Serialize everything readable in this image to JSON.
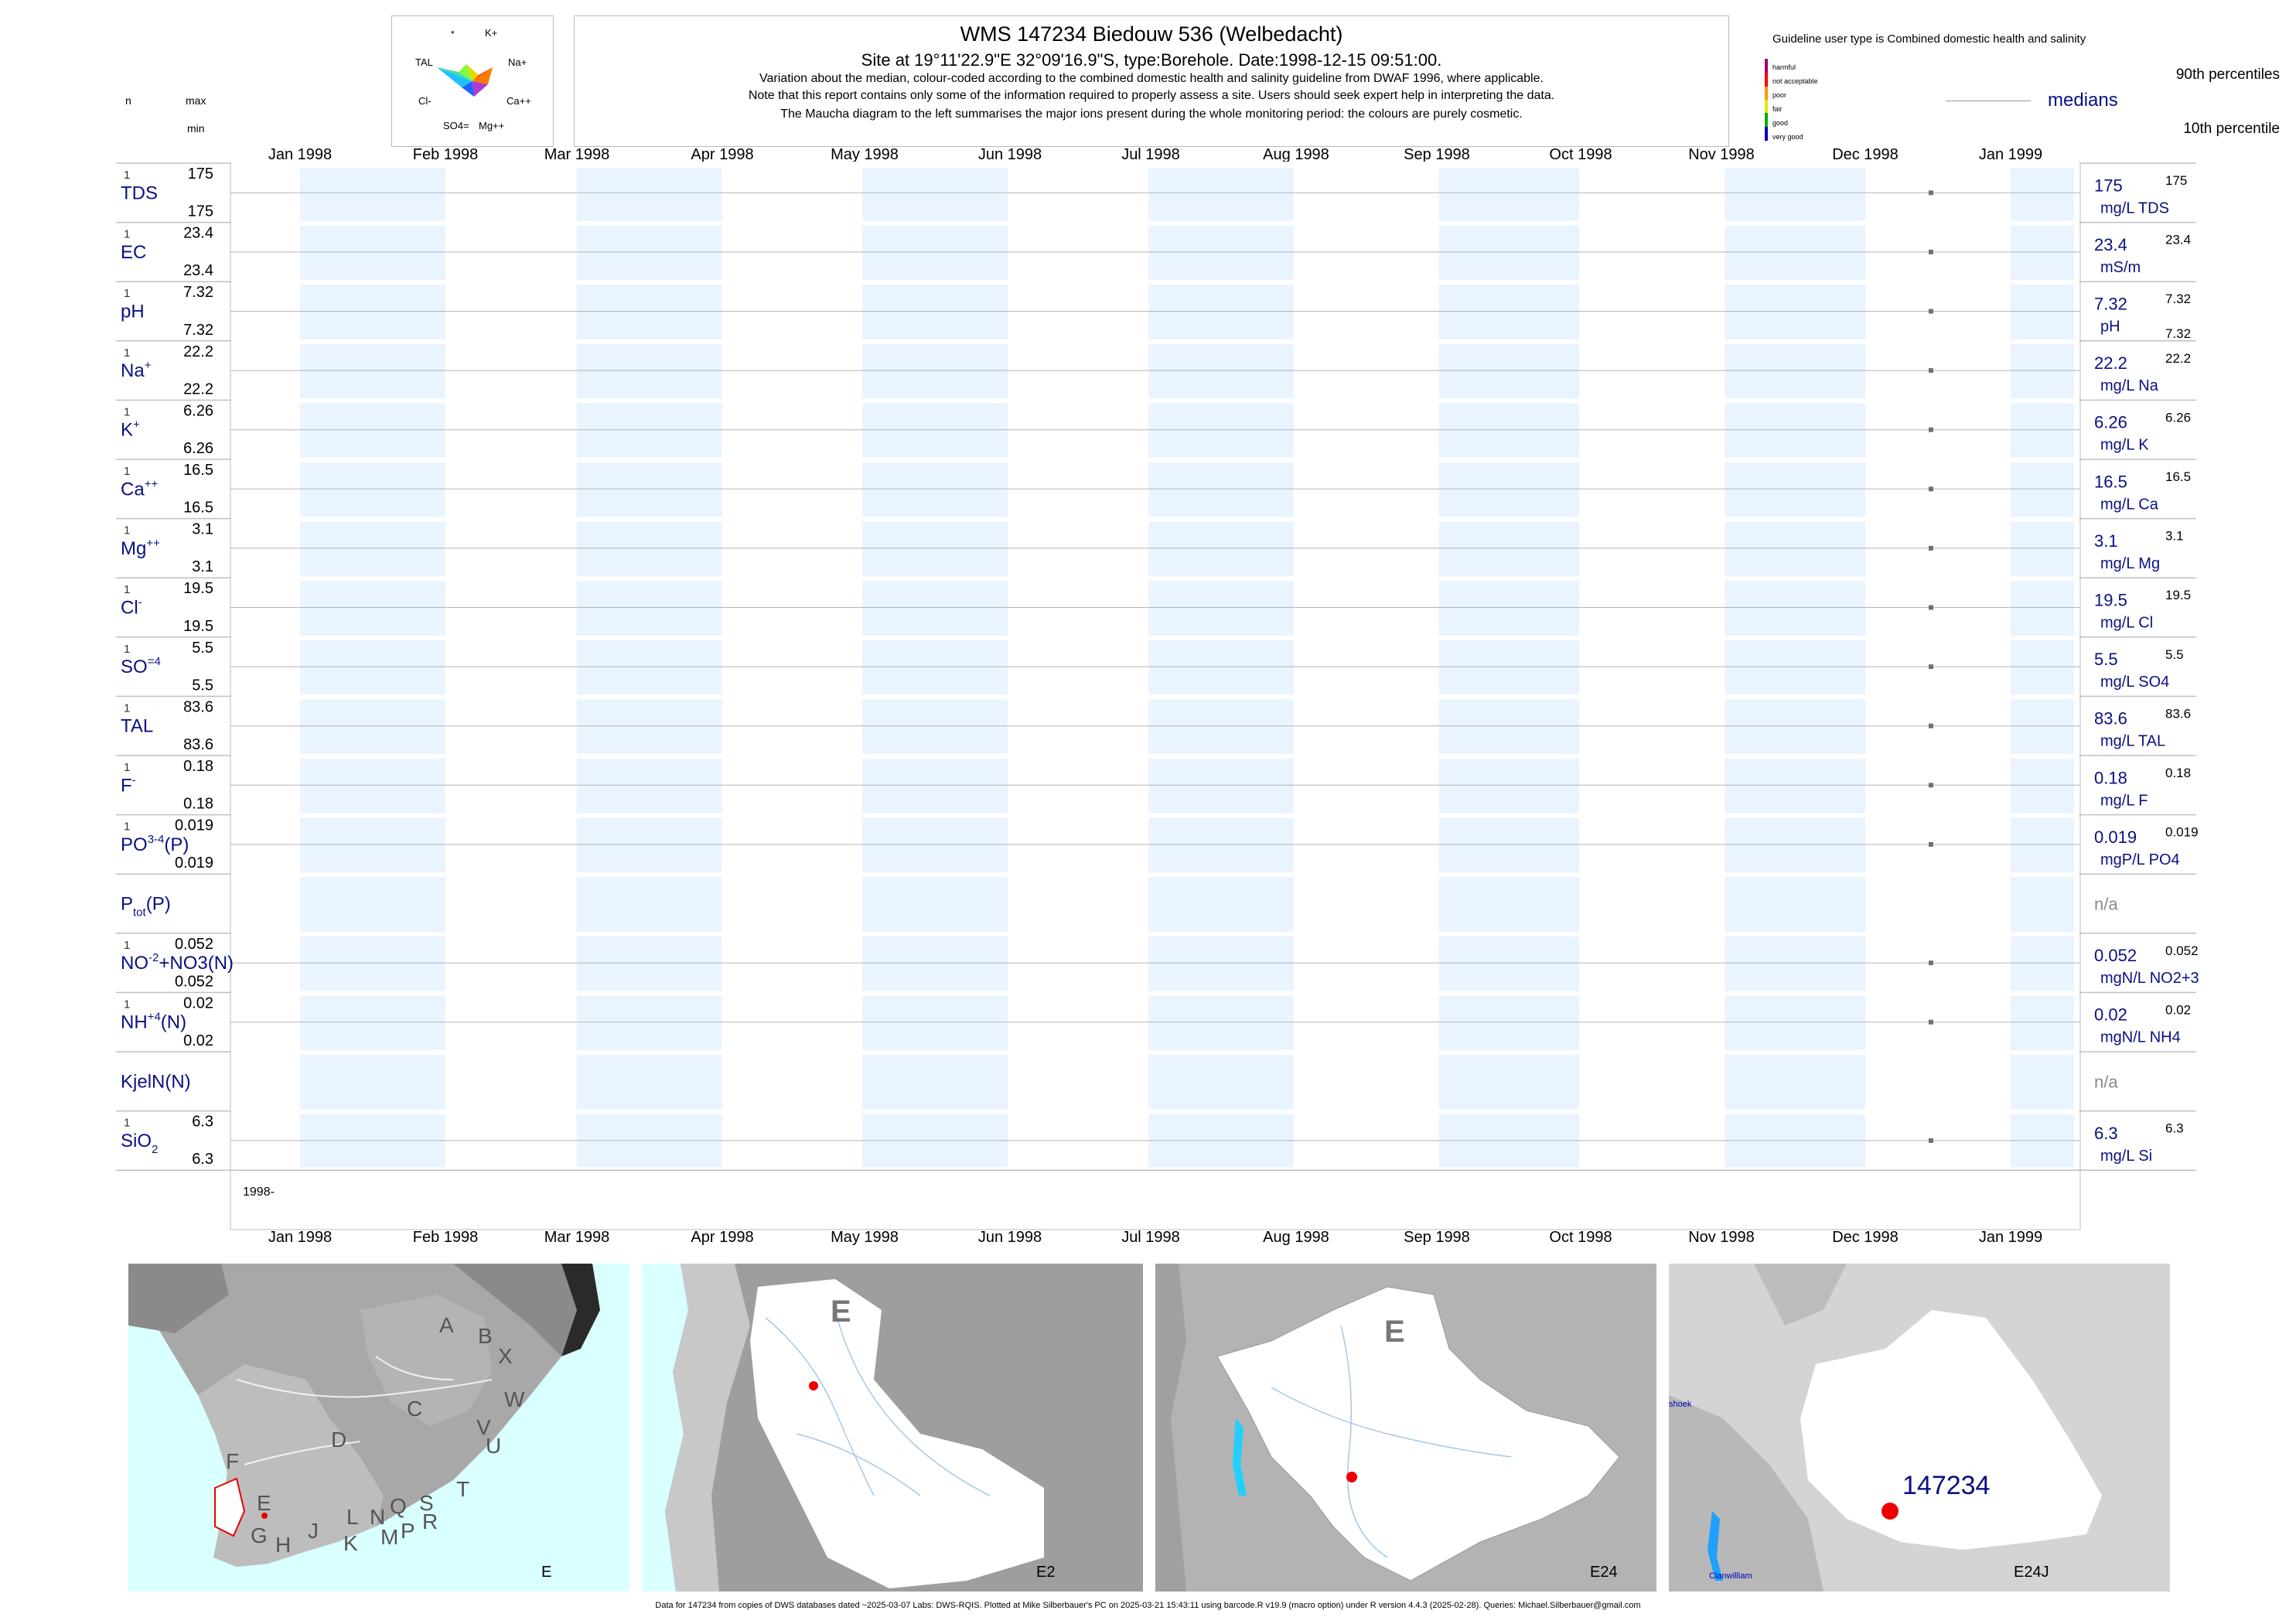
{
  "header": {
    "title": "WMS 147234  Biedouw 536 (Welbedacht)",
    "subtitle": "Site at 19°11'22.9\"E 32°09'16.9\"S, type:Borehole. Date:1998-12-15 09:51:00.",
    "note1": "Variation about the median,  colour-coded according to the combined domestic health and salinity guideline from DWAF 1996, where applicable.",
    "note2": "Note that this report contains only some of the information required to properly assess a site. Users should seek expert help in interpreting the data.",
    "note3": "The Maucha diagram to the left summarises the major ions present during the whole monitoring period: the colours are purely cosmetic."
  },
  "col_labels": {
    "n": "n",
    "max": "max",
    "min": "min"
  },
  "maucha": {
    "labels": [
      "*",
      "K+",
      "TAL",
      "Na+",
      "Cl-",
      "Ca++",
      "SO4=",
      "Mg++"
    ]
  },
  "guideline": {
    "title": "Guideline user type is Combined domestic health and salinity",
    "categories": [
      "harmful",
      "not acceptable",
      "poor",
      "fair",
      "good",
      "very good"
    ],
    "colors": [
      "#a0006e",
      "#ff0000",
      "#ff9900",
      "#e6e600",
      "#00b000",
      "#0000c8"
    ],
    "p90_label": "90th percentiles",
    "median_label": "medians",
    "p10_label": "10th percentile"
  },
  "chart_data": {
    "type": "scatter",
    "x_ticks": [
      "Jan 1998",
      "Feb 1998",
      "Mar 1998",
      "Apr 1998",
      "May 1998",
      "Jun 1998",
      "Jul 1998",
      "Aug 1998",
      "Sep 1998",
      "Oct 1998",
      "Nov 1998",
      "Dec 1998",
      "Jan 1999"
    ],
    "x_start_label": "1998-",
    "sample_date": "1998-12-15",
    "series": [
      {
        "name": "TDS",
        "sup": "",
        "sub": "",
        "n": "1",
        "max": "175",
        "min": "175",
        "median": "175",
        "p90": "175",
        "p10": "",
        "unit": "mg/L TDS",
        "value": 175
      },
      {
        "name": "EC",
        "sup": "",
        "sub": "",
        "n": "1",
        "max": "23.4",
        "min": "23.4",
        "median": "23.4",
        "p90": "23.4",
        "p10": "",
        "unit": "mS/m",
        "value": 23.4
      },
      {
        "name": "pH",
        "sup": "",
        "sub": "",
        "n": "1",
        "max": "7.32",
        "min": "7.32",
        "median": "7.32",
        "p90": "7.32",
        "p10": "7.32",
        "unit": "pH",
        "value": 7.32
      },
      {
        "name": "Na",
        "sup": "+",
        "sub": "",
        "n": "1",
        "max": "22.2",
        "min": "22.2",
        "median": "22.2",
        "p90": "22.2",
        "p10": "",
        "unit": "mg/L Na",
        "value": 22.2
      },
      {
        "name": "K",
        "sup": "+",
        "sub": "",
        "n": "1",
        "max": "6.26",
        "min": "6.26",
        "median": "6.26",
        "p90": "6.26",
        "p10": "",
        "unit": "mg/L K",
        "value": 6.26
      },
      {
        "name": "Ca",
        "sup": "++",
        "sub": "",
        "n": "1",
        "max": "16.5",
        "min": "16.5",
        "median": "16.5",
        "p90": "16.5",
        "p10": "",
        "unit": "mg/L Ca",
        "value": 16.5
      },
      {
        "name": "Mg",
        "sup": "++",
        "sub": "",
        "n": "1",
        "max": "3.1",
        "min": "3.1",
        "median": "3.1",
        "p90": "3.1",
        "p10": "",
        "unit": "mg/L Mg",
        "value": 3.1
      },
      {
        "name": "Cl",
        "sup": "-",
        "sub": "",
        "n": "1",
        "max": "19.5",
        "min": "19.5",
        "median": "19.5",
        "p90": "19.5",
        "p10": "",
        "unit": "mg/L Cl",
        "value": 19.5
      },
      {
        "name": "SO",
        "sup": "=",
        "sub": "4",
        "n": "1",
        "max": "5.5",
        "min": "5.5",
        "median": "5.5",
        "p90": "5.5",
        "p10": "",
        "unit": "mg/L SO4",
        "value": 5.5
      },
      {
        "name": "TAL",
        "sup": "",
        "sub": "",
        "n": "1",
        "max": "83.6",
        "min": "83.6",
        "median": "83.6",
        "p90": "83.6",
        "p10": "",
        "unit": "mg/L TAL",
        "value": 83.6
      },
      {
        "name": "F",
        "sup": "-",
        "sub": "",
        "n": "1",
        "max": "0.18",
        "min": "0.18",
        "median": "0.18",
        "p90": "0.18",
        "p10": "",
        "unit": "mg/L F",
        "value": 0.18
      },
      {
        "name": "PO",
        "sup": "3-",
        "sub": "4",
        "suffix": "(P)",
        "n": "1",
        "max": "0.019",
        "min": "0.019",
        "median": "0.019",
        "p90": "0.019",
        "p10": "",
        "unit": "mgP/L PO4",
        "value": 0.019
      },
      {
        "name": "P",
        "sup": "",
        "sub": "tot",
        "suffix": "(P)",
        "n": "",
        "max": "",
        "min": "",
        "median": "n/a",
        "p90": "",
        "p10": "",
        "unit": "",
        "value": null
      },
      {
        "name": "NO",
        "sup": "-",
        "sub": "2",
        "suffix": "+NO3(N)",
        "n": "1",
        "max": "0.052",
        "min": "0.052",
        "median": "0.052",
        "p90": "0.052",
        "p10": "",
        "unit": "mgN/L NO2+3",
        "value": 0.052
      },
      {
        "name": "NH",
        "sup": "+",
        "sub": "4",
        "suffix": "(N)",
        "n": "1",
        "max": "0.02",
        "min": "0.02",
        "median": "0.02",
        "p90": "0.02",
        "p10": "",
        "unit": "mgN/L NH4",
        "value": 0.02
      },
      {
        "name": "KjelN(N)",
        "sup": "",
        "sub": "",
        "n": "",
        "max": "",
        "min": "",
        "median": "n/a",
        "p90": "",
        "p10": "",
        "unit": "",
        "value": null
      },
      {
        "name": "SiO",
        "sup": "",
        "sub": "2",
        "n": "1",
        "max": "6.3",
        "min": "6.3",
        "median": "6.3",
        "p90": "6.3",
        "p10": "",
        "unit": "mg/L Si",
        "value": 6.3
      }
    ]
  },
  "maps": {
    "tiles": [
      {
        "caption": "E",
        "region_letters": [
          "A",
          "B",
          "X",
          "W",
          "C",
          "D",
          "V",
          "U",
          "F",
          "E",
          "T",
          "G",
          "H",
          "J",
          "L",
          "N",
          "Q",
          "S",
          "R",
          "K",
          "M",
          "P"
        ]
      },
      {
        "caption": "E2",
        "big_letter": "E"
      },
      {
        "caption": "E24",
        "big_letter": "E"
      },
      {
        "caption": "E24J",
        "site_label": "147234",
        "town1": "shoek",
        "town2": "Clanwilliam"
      }
    ]
  },
  "footer": "Data for 147234 from copies of DWS databases dated ~2025-03-07 Labs: DWS-RQIS. Plotted at Mike Silberbauer's PC on 2025-03-21 15:43:11 using barcode.R v19.9 (macro option) under R version 4.4.3 (2025-02-28). Queries: Michael.Silberbauer@gmail.com"
}
